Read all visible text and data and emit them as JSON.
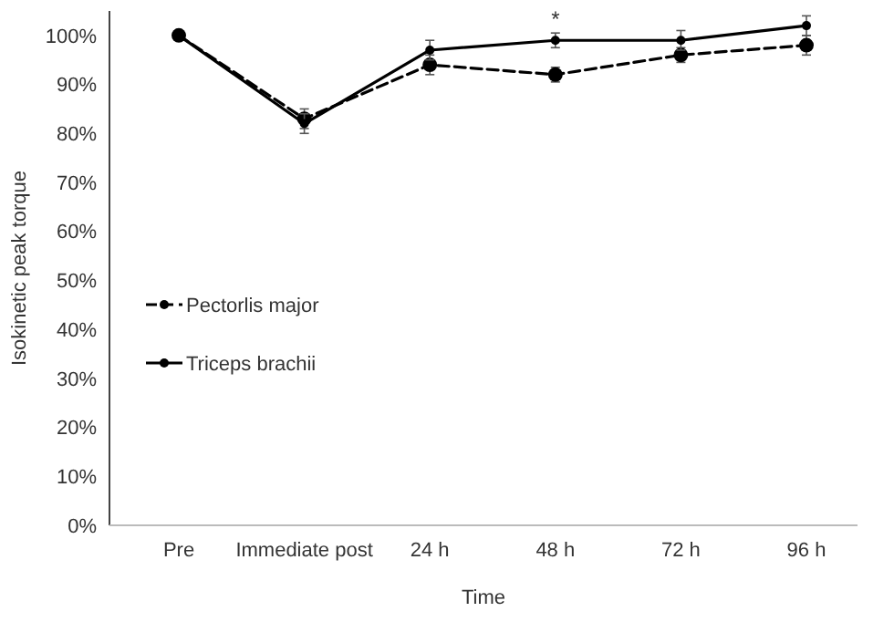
{
  "chart_data": {
    "type": "line",
    "xlabel": "Time",
    "ylabel": "Isokinetic peak torque",
    "categories": [
      "Pre",
      "Immediate post",
      "24 h",
      "48 h",
      "72 h",
      "96 h"
    ],
    "series": [
      {
        "name": "Pectorlis major",
        "color": "#000000",
        "line_style": "dashed",
        "values": [
          100,
          83,
          94,
          92,
          96,
          98
        ],
        "errors": [
          null,
          2,
          2,
          1.5,
          1.5,
          2
        ]
      },
      {
        "name": "Triceps brachii",
        "color": "#000000",
        "line_style": "solid",
        "values": [
          100,
          82,
          97,
          99,
          99,
          102
        ],
        "errors": [
          null,
          2,
          2,
          1.5,
          2,
          2
        ]
      }
    ],
    "ylim": [
      0,
      105
    ],
    "yticks": [
      {
        "value": 0,
        "label": "0%"
      },
      {
        "value": 10,
        "label": "10%"
      },
      {
        "value": 20,
        "label": "20%"
      },
      {
        "value": 30,
        "label": "30%"
      },
      {
        "value": 40,
        "label": "40%"
      },
      {
        "value": 50,
        "label": "50%"
      },
      {
        "value": 60,
        "label": "60%"
      },
      {
        "value": 70,
        "label": "70%"
      },
      {
        "value": 80,
        "label": "80%"
      },
      {
        "value": 90,
        "label": "90%"
      },
      {
        "value": 100,
        "label": "100%"
      }
    ],
    "annotations": [
      {
        "text": "*",
        "x": "48 h",
        "y": 99
      }
    ],
    "marker": "circle",
    "legend": "left",
    "grid": false
  }
}
